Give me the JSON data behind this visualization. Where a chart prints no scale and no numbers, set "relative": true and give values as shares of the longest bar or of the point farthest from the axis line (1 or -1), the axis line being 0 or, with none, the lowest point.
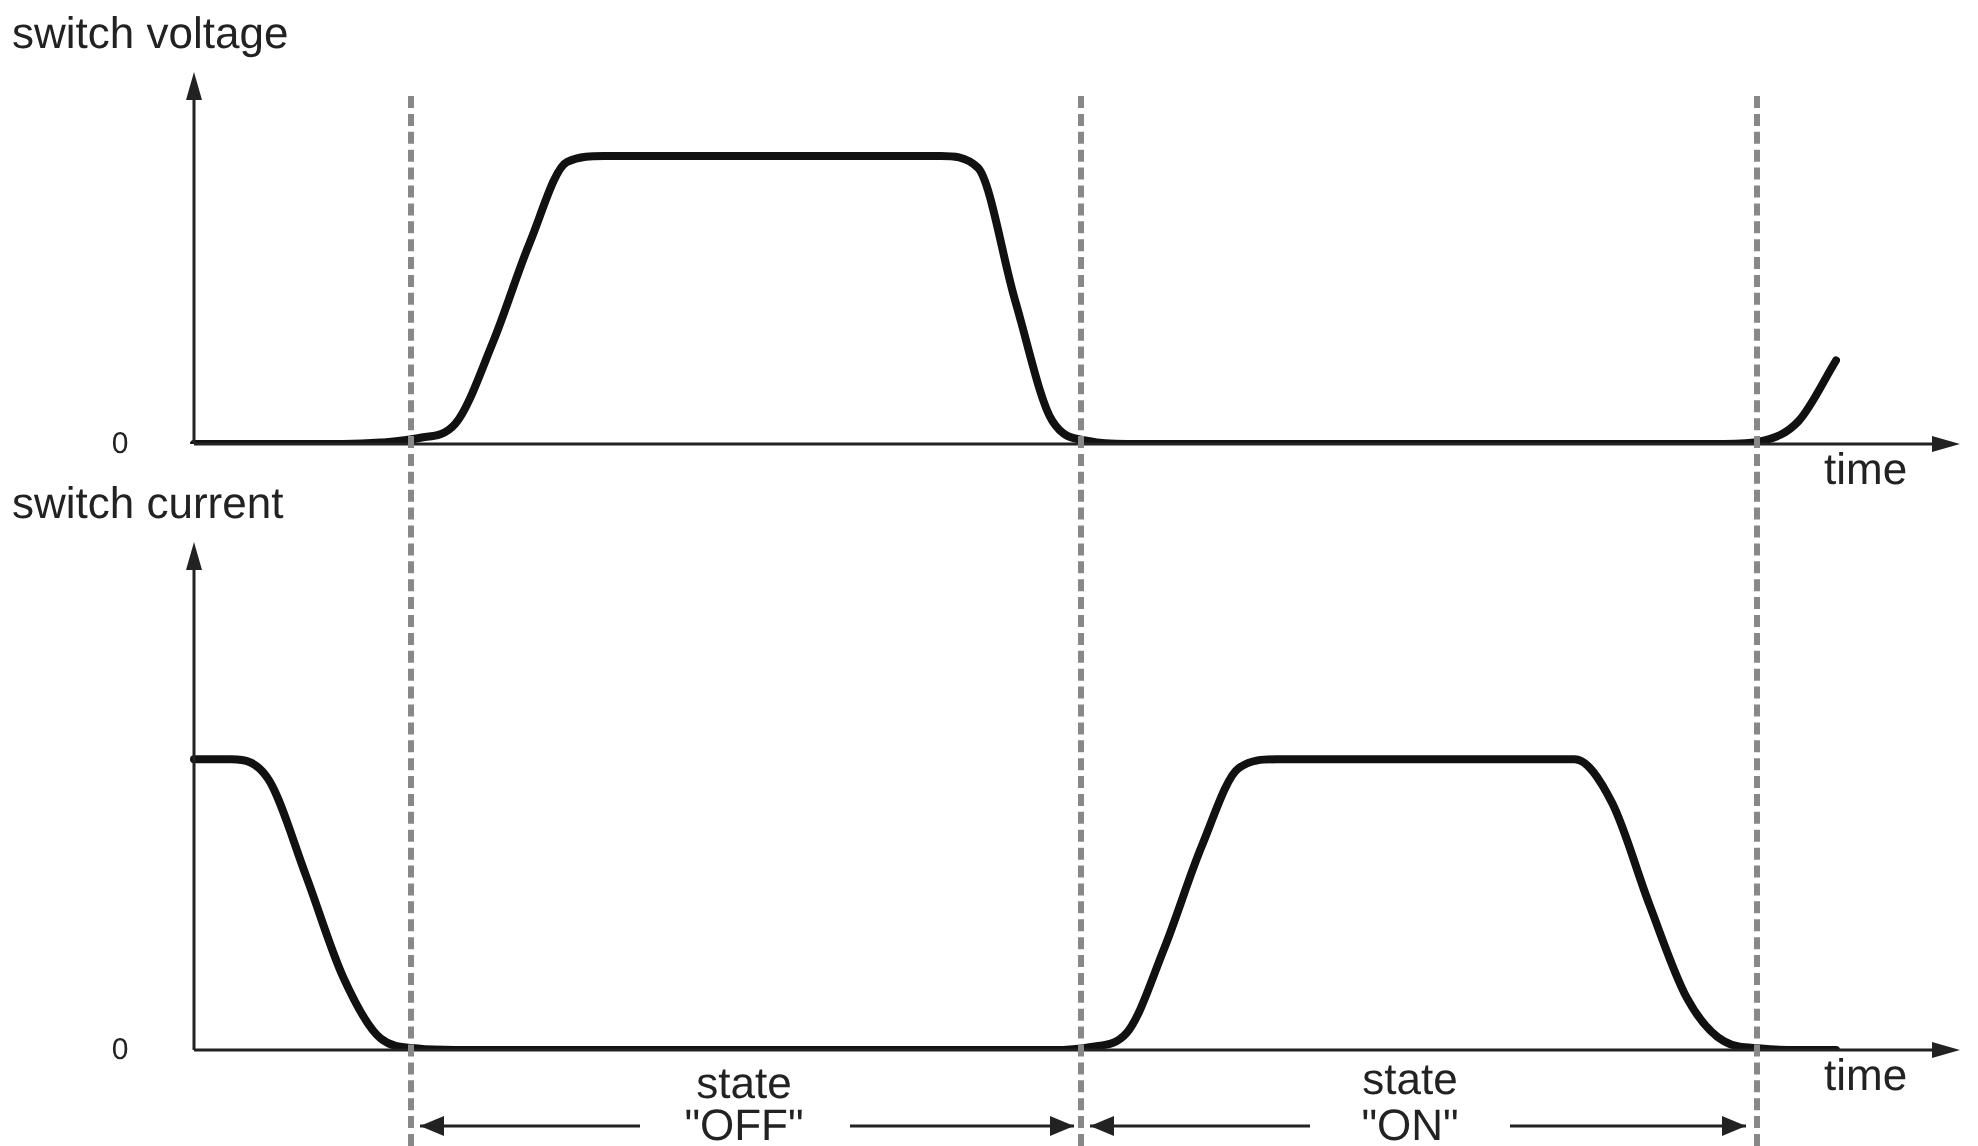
{
  "chart_data": [
    {
      "type": "line",
      "ylabel": "switch voltage",
      "xlabel": "time",
      "relative": true,
      "annotations": [
        "0"
      ],
      "categories": [
        null,
        null,
        null,
        null,
        null,
        null,
        null,
        null,
        null,
        null,
        null,
        null,
        null,
        null,
        null,
        null,
        null,
        null,
        null,
        null,
        null,
        null,
        null,
        null,
        null,
        null,
        null,
        null,
        null,
        null,
        null,
        null,
        null,
        null,
        null,
        null,
        null,
        null,
        null,
        null,
        null,
        null,
        null,
        null,
        null
      ],
      "series": [
        {
          "color": "#111111",
          "values": [
            0,
            0,
            0,
            0,
            0,
            0.005,
            0.02,
            0.07,
            0.35,
            0.7,
            0.98,
            1,
            1,
            1,
            1,
            1,
            1,
            1,
            1,
            1,
            1,
            0.96,
            0.5,
            0.08,
            0.01,
            0,
            0,
            0,
            0,
            0,
            0,
            0,
            0,
            0,
            0,
            0,
            0,
            0,
            0,
            0,
            0,
            0,
            0.01,
            0.08,
            0.29
          ]
        }
      ]
    },
    {
      "type": "line",
      "ylabel": "switch current",
      "xlabel": "time",
      "relative": true,
      "annotations": [
        "0",
        "state",
        "\"OFF\"",
        "state",
        "\"ON\""
      ],
      "categories": [
        null,
        null,
        null,
        null,
        null,
        null,
        null,
        null,
        null,
        null,
        null,
        null,
        null,
        null,
        null,
        null,
        null,
        null,
        null,
        null,
        null,
        null,
        null,
        null,
        null,
        null,
        null,
        null,
        null,
        null,
        null,
        null,
        null,
        null,
        null,
        null,
        null,
        null,
        null,
        null,
        null,
        null,
        null,
        null,
        null
      ],
      "series": [
        {
          "color": "#111111",
          "values": [
            1,
            1,
            0.93,
            0.6,
            0.25,
            0.04,
            0.005,
            0,
            0,
            0,
            0,
            0,
            0,
            0,
            0,
            0,
            0,
            0,
            0,
            0,
            0,
            0,
            0,
            0,
            0.01,
            0.06,
            0.35,
            0.7,
            0.97,
            1,
            1,
            1,
            1,
            1,
            1,
            1,
            1,
            1,
            0.85,
            0.5,
            0.18,
            0.03,
            0.005,
            0,
            0
          ]
        }
      ]
    }
  ]
}
